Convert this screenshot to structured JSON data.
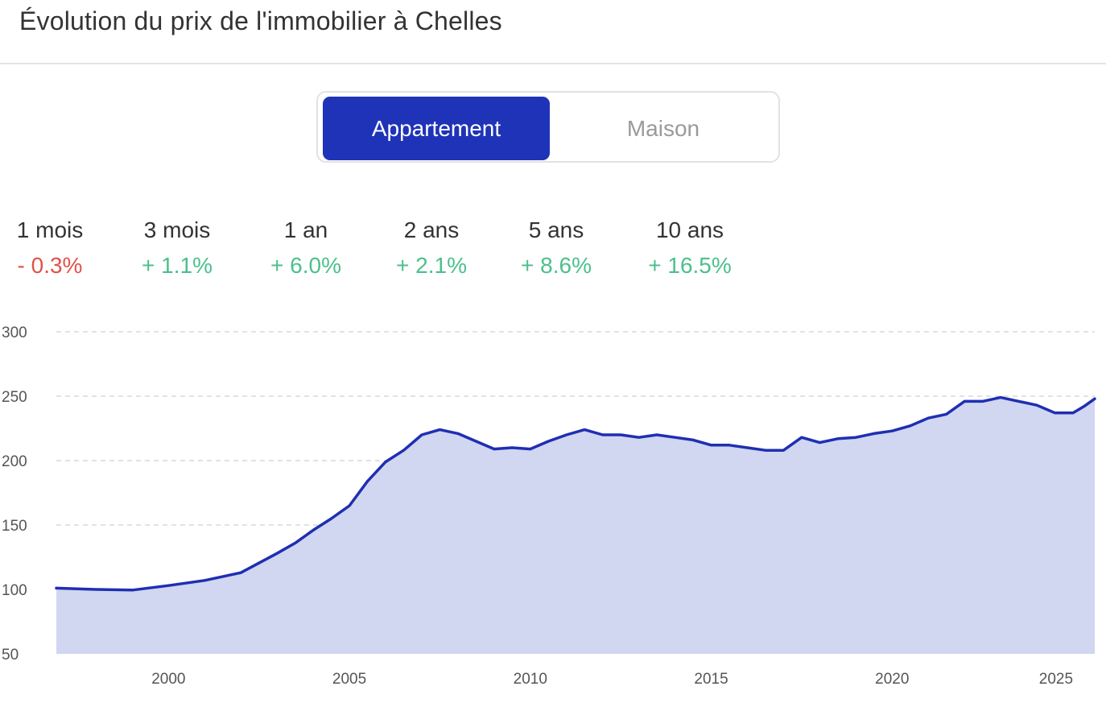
{
  "title": "Évolution du prix de l'immobilier à Chelles",
  "toggle": {
    "options": [
      "Appartement",
      "Maison"
    ],
    "selected": "Appartement"
  },
  "colors": {
    "accent": "#1f33b8",
    "negative": "#e0524a",
    "positive": "#4cc08c",
    "area": "#d1d6f1",
    "line": "#1f2fb2"
  },
  "stats": [
    {
      "period": "1 mois",
      "change": "- 0.3%",
      "trend": "down"
    },
    {
      "period": "3 mois",
      "change": "+ 1.1%",
      "trend": "up"
    },
    {
      "period": "1 an",
      "change": "+ 6.0%",
      "trend": "up"
    },
    {
      "period": "2 ans",
      "change": "+ 2.1%",
      "trend": "up"
    },
    {
      "period": "5 ans",
      "change": "+ 8.6%",
      "trend": "up"
    },
    {
      "period": "10 ans",
      "change": "+ 16.5%",
      "trend": "up"
    }
  ],
  "chart_data": {
    "type": "area",
    "title": "",
    "xlabel": "",
    "ylabel": "",
    "xlim": [
      1996.9,
      2025.6
    ],
    "ylim": [
      50,
      300
    ],
    "yticks": [
      50,
      100,
      150,
      200,
      250,
      300
    ],
    "xticks": [
      2000,
      2005,
      2010,
      2015,
      2020,
      2025
    ],
    "grid": true,
    "series": [
      {
        "x": [
          1996.9,
          1998.0,
          1999.0,
          2000.0,
          2001.0,
          2002.0,
          2003.0,
          2003.5,
          2004.0,
          2004.5,
          2005.0,
          2005.5,
          2006.0,
          2006.5,
          2007.0,
          2007.5,
          2008.0,
          2008.5,
          2009.0,
          2009.5,
          2010.0,
          2010.5,
          2011.0,
          2011.5,
          2012.0,
          2012.5,
          2013.0,
          2013.5,
          2014.0,
          2014.5,
          2015.0,
          2015.5,
          2016.0,
          2016.5,
          2017.0,
          2017.5,
          2018.0,
          2018.5,
          2019.0,
          2019.5,
          2020.0,
          2020.5,
          2021.0,
          2021.5,
          2022.0,
          2022.5,
          2023.0,
          2023.5,
          2024.0,
          2024.5,
          2025.0,
          2025.3,
          2025.6
        ],
        "values": [
          101,
          100,
          99.5,
          103,
          107,
          113,
          128,
          136,
          146,
          155,
          165,
          184,
          199,
          208,
          220,
          224,
          221,
          215,
          209,
          210,
          209,
          215,
          220,
          224,
          220,
          220,
          218,
          220,
          218,
          216,
          212,
          212,
          210,
          208,
          208,
          218,
          214,
          217,
          218,
          221,
          223,
          227,
          233,
          236,
          246,
          246,
          249,
          246,
          243,
          237,
          237,
          242,
          248
        ]
      }
    ]
  }
}
